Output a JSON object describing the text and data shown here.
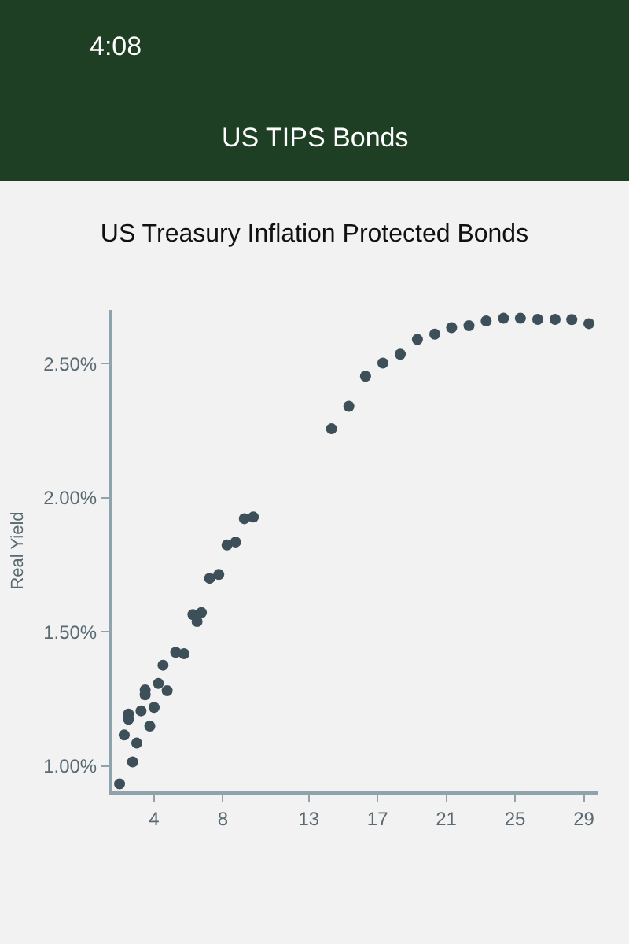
{
  "chart_data": {
    "type": "scatter",
    "title": "US Treasury Inflation Protected Bonds",
    "ylabel": "Real Yield",
    "annotations": [
      "4:08",
      "US TIPS Bonds"
    ],
    "x": [
      1.99,
      2.26,
      2.51,
      2.51,
      2.75,
      2.99,
      3.24,
      3.48,
      3.48,
      3.75,
      4.0,
      4.25,
      4.52,
      4.76,
      5.26,
      5.74,
      6.26,
      6.5,
      6.75,
      7.23,
      7.76,
      8.24,
      8.74,
      9.25,
      9.77,
      14.32,
      15.33,
      16.3,
      17.31,
      18.32,
      19.32,
      20.33,
      21.31,
      22.32,
      23.32,
      24.33,
      25.31,
      26.32,
      27.33,
      28.3,
      29.3
    ],
    "series": [
      {
        "color": "#3d4f58",
        "values": [
          0.934,
          1.116,
          1.194,
          1.175,
          1.016,
          1.086,
          1.206,
          1.284,
          1.266,
          1.149,
          1.219,
          1.308,
          1.376,
          1.281,
          1.424,
          1.419,
          1.565,
          1.539,
          1.572,
          1.7,
          1.714,
          1.824,
          1.835,
          1.922,
          1.928,
          2.257,
          2.341,
          2.453,
          2.502,
          2.535,
          2.59,
          2.61,
          2.634,
          2.641,
          2.659,
          2.669,
          2.669,
          2.665,
          2.665,
          2.664,
          2.649
        ]
      }
    ],
    "xlim": [
      1.53,
      29.8
    ],
    "ylim": [
      0.906,
      2.7
    ],
    "xticks": [
      4,
      8,
      13,
      17,
      21,
      25,
      29
    ],
    "yticks": [
      {
        "value": 1.0,
        "label": "1.00%"
      },
      {
        "value": 1.5,
        "label": "1.50%"
      },
      {
        "value": 2.0,
        "label": "2.00%"
      },
      {
        "value": 2.5,
        "label": "2.50%"
      }
    ],
    "marker": "circle",
    "grid": false
  }
}
